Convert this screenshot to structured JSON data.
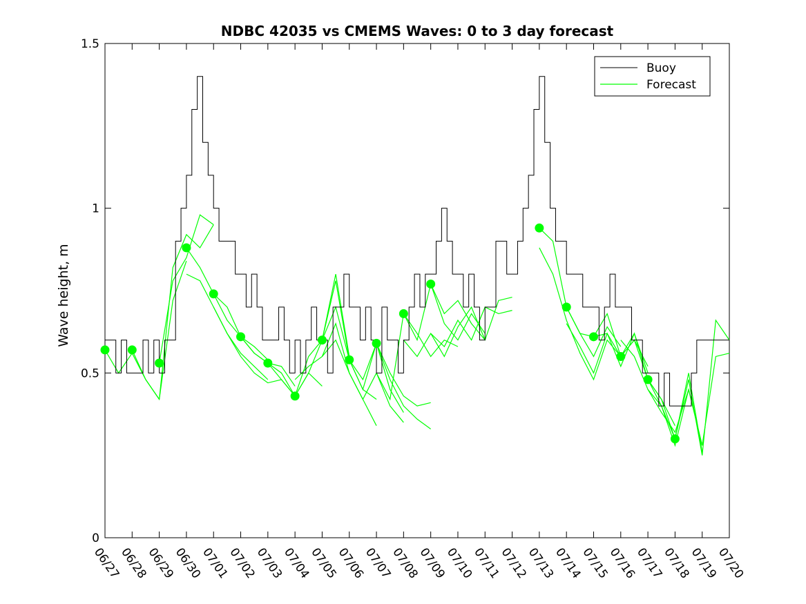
{
  "chart_data": {
    "type": "line",
    "title": "NDBC 42035 vs CMEMS Waves: 0 to 3 day forecast",
    "xlabel": "",
    "ylabel": "Wave height, m",
    "xlim": [
      0,
      23
    ],
    "ylim": [
      0,
      1.5
    ],
    "yticks": [
      0,
      0.5,
      1,
      1.5
    ],
    "ytick_labels": [
      "0",
      "0.5",
      "1",
      "1.5"
    ],
    "xtick_labels": [
      "06/27",
      "06/28",
      "06/29",
      "06/30",
      "07/01",
      "07/02",
      "07/03",
      "07/04",
      "07/05",
      "07/06",
      "07/07",
      "07/08",
      "07/09",
      "07/10",
      "07/11",
      "07/12",
      "07/13",
      "07/14",
      "07/15",
      "07/16",
      "07/17",
      "07/18",
      "07/19",
      "07/20"
    ],
    "grid": false,
    "legend_position": "top-right",
    "legend": [
      "Buoy",
      "Forecast"
    ],
    "colors": {
      "buoy": "#000000",
      "forecast": "#00ff00",
      "axes": "#000000"
    },
    "buoy": {
      "name": "Buoy",
      "x": [
        0,
        0.2,
        0.4,
        0.6,
        0.8,
        1.0,
        1.2,
        1.4,
        1.6,
        1.8,
        2.0,
        2.2,
        2.4,
        2.6,
        2.8,
        3.0,
        3.2,
        3.4,
        3.6,
        3.8,
        4.0,
        4.2,
        4.4,
        4.6,
        4.8,
        5.0,
        5.2,
        5.4,
        5.6,
        5.8,
        6.0,
        6.2,
        6.4,
        6.6,
        6.8,
        7.0,
        7.2,
        7.4,
        7.6,
        7.8,
        8.0,
        8.2,
        8.4,
        8.6,
        8.8,
        9.0,
        9.2,
        9.4,
        9.6,
        9.8,
        10.0,
        10.2,
        10.4,
        10.6,
        10.8,
        11.0,
        11.2,
        11.4,
        11.6,
        11.8,
        12.0,
        12.2,
        12.4,
        12.6,
        12.8,
        13.0,
        13.2,
        13.4,
        13.6,
        13.8,
        14.0,
        14.2,
        14.4,
        14.6,
        14.8,
        15.0,
        15.2,
        15.4,
        15.6,
        15.8,
        16.0,
        16.2,
        16.4,
        16.6,
        16.8,
        17.0,
        17.2,
        17.4,
        17.6,
        17.8,
        18.0,
        18.2,
        18.4,
        18.6,
        18.8,
        19.0,
        19.2,
        19.4,
        19.6,
        19.8,
        20.0,
        20.2,
        20.4,
        20.6,
        20.8,
        21.0,
        21.2,
        21.4,
        21.6,
        21.8,
        22.0,
        22.2,
        22.4,
        22.6,
        22.8,
        23.0
      ],
      "y": [
        0.6,
        0.6,
        0.5,
        0.6,
        0.5,
        0.5,
        0.5,
        0.6,
        0.5,
        0.6,
        0.5,
        0.6,
        0.6,
        0.9,
        1.0,
        1.1,
        1.3,
        1.4,
        1.2,
        1.1,
        1.0,
        0.9,
        0.9,
        0.9,
        0.8,
        0.8,
        0.7,
        0.8,
        0.7,
        0.6,
        0.6,
        0.6,
        0.7,
        0.6,
        0.5,
        0.6,
        0.5,
        0.6,
        0.7,
        0.6,
        0.6,
        0.5,
        0.7,
        0.7,
        0.8,
        0.7,
        0.7,
        0.6,
        0.7,
        0.6,
        0.5,
        0.7,
        0.6,
        0.6,
        0.5,
        0.6,
        0.7,
        0.8,
        0.7,
        0.8,
        0.8,
        0.9,
        1.0,
        0.9,
        0.8,
        0.8,
        0.7,
        0.8,
        0.7,
        0.6,
        0.7,
        0.7,
        0.9,
        0.9,
        0.8,
        0.8,
        0.9,
        1.0,
        1.1,
        1.3,
        1.4,
        1.2,
        1.0,
        0.9,
        0.9,
        0.8,
        0.8,
        0.8,
        0.7,
        0.7,
        0.7,
        0.6,
        0.7,
        0.8,
        0.7,
        0.7,
        0.7,
        0.6,
        0.6,
        0.5,
        0.5,
        0.5,
        0.4,
        0.5,
        0.4,
        0.4,
        0.4,
        0.4,
        0.5,
        0.6,
        0.6,
        0.6,
        0.6,
        0.6,
        0.6,
        0.6
      ]
    },
    "forecast_markers": {
      "x": [
        0,
        1,
        2,
        3,
        4,
        5,
        6,
        7,
        8,
        9,
        10,
        11,
        12,
        16,
        17,
        18,
        19,
        20,
        21
      ],
      "y": [
        0.57,
        0.57,
        0.53,
        0.88,
        0.74,
        0.61,
        0.53,
        0.43,
        0.6,
        0.54,
        0.59,
        0.68,
        0.77,
        0.94,
        0.7,
        0.61,
        0.55,
        0.48,
        0.3
      ]
    },
    "forecast_runs": [
      {
        "x": [
          0,
          0.5,
          1,
          1.5,
          2
        ],
        "y": [
          0.57,
          0.5,
          0.56,
          0.48,
          0.42
        ]
      },
      {
        "x": [
          1,
          1.5,
          2,
          2.5,
          3
        ],
        "y": [
          0.57,
          0.48,
          0.42,
          0.72,
          0.84
        ]
      },
      {
        "x": [
          2,
          2.5,
          3,
          3.5,
          4
        ],
        "y": [
          0.42,
          0.82,
          0.92,
          0.88,
          0.95
        ]
      },
      {
        "x": [
          2,
          2.5,
          3,
          3.5,
          4
        ],
        "y": [
          0.53,
          0.78,
          0.85,
          0.98,
          0.95
        ]
      },
      {
        "x": [
          3,
          3.5,
          4,
          4.5,
          5,
          5.5,
          6
        ],
        "y": [
          0.88,
          0.82,
          0.74,
          0.7,
          0.61,
          0.58,
          0.54
        ]
      },
      {
        "x": [
          3,
          3.5,
          4,
          4.5,
          5,
          5.5,
          6
        ],
        "y": [
          0.8,
          0.78,
          0.7,
          0.62,
          0.56,
          0.52,
          0.48
        ]
      },
      {
        "x": [
          4,
          4.5,
          5,
          5.5,
          6,
          6.5,
          7
        ],
        "y": [
          0.74,
          0.66,
          0.61,
          0.56,
          0.53,
          0.52,
          0.46
        ]
      },
      {
        "x": [
          4,
          4.5,
          5,
          5.5,
          6,
          6.5,
          7
        ],
        "y": [
          0.7,
          0.62,
          0.55,
          0.5,
          0.47,
          0.48,
          0.43
        ]
      },
      {
        "x": [
          5,
          5.5,
          6,
          6.5,
          7,
          7.5,
          8
        ],
        "y": [
          0.61,
          0.56,
          0.53,
          0.48,
          0.43,
          0.5,
          0.46
        ]
      },
      {
        "x": [
          6,
          6.5,
          7,
          7.5,
          8,
          8.5,
          9
        ],
        "y": [
          0.53,
          0.5,
          0.43,
          0.55,
          0.6,
          0.8,
          0.55
        ]
      },
      {
        "x": [
          7,
          7.5,
          8,
          8.5,
          9,
          9.5,
          10
        ],
        "y": [
          0.43,
          0.5,
          0.6,
          0.78,
          0.54,
          0.45,
          0.42
        ]
      },
      {
        "x": [
          7,
          7.5,
          8,
          8.5,
          9,
          9.5,
          10
        ],
        "y": [
          0.48,
          0.52,
          0.55,
          0.65,
          0.5,
          0.42,
          0.34
        ]
      },
      {
        "x": [
          8,
          8.5,
          9,
          9.5,
          10,
          10.5,
          11
        ],
        "y": [
          0.6,
          0.7,
          0.54,
          0.45,
          0.59,
          0.45,
          0.38
        ]
      },
      {
        "x": [
          8,
          8.5,
          9,
          9.5,
          10,
          10.5,
          11
        ],
        "y": [
          0.55,
          0.6,
          0.5,
          0.42,
          0.5,
          0.4,
          0.35
        ]
      },
      {
        "x": [
          9,
          9.5,
          10,
          10.5,
          11,
          11.5,
          12
        ],
        "y": [
          0.54,
          0.48,
          0.59,
          0.48,
          0.4,
          0.36,
          0.33
        ]
      },
      {
        "x": [
          10,
          10.5,
          11,
          11.5,
          12
        ],
        "y": [
          0.59,
          0.5,
          0.43,
          0.4,
          0.41
        ]
      },
      {
        "x": [
          10,
          10.5,
          11,
          11.5,
          12,
          12.5,
          13
        ],
        "y": [
          0.5,
          0.42,
          0.68,
          0.62,
          0.55,
          0.6,
          0.58
        ]
      },
      {
        "x": [
          11,
          11.5,
          12,
          12.5,
          13,
          13.5,
          14
        ],
        "y": [
          0.68,
          0.6,
          0.77,
          0.65,
          0.6,
          0.68,
          0.62
        ]
      },
      {
        "x": [
          11,
          11.5,
          12,
          12.5,
          13,
          13.5,
          14
        ],
        "y": [
          0.6,
          0.55,
          0.62,
          0.55,
          0.64,
          0.7,
          0.6
        ]
      },
      {
        "x": [
          12,
          12.5,
          13,
          13.5,
          14,
          14.5,
          15
        ],
        "y": [
          0.77,
          0.68,
          0.72,
          0.65,
          0.6,
          0.72,
          0.73
        ]
      },
      {
        "x": [
          12,
          12.5,
          13,
          13.5,
          14,
          14.5,
          15
        ],
        "y": [
          0.62,
          0.58,
          0.66,
          0.6,
          0.7,
          0.68,
          0.69
        ]
      },
      {
        "x": [
          16,
          16.5,
          17,
          17.5,
          18,
          18.5,
          19
        ],
        "y": [
          0.94,
          0.9,
          0.7,
          0.62,
          0.55,
          0.64,
          0.58
        ]
      },
      {
        "x": [
          16,
          16.5,
          17,
          17.5,
          18,
          18.5,
          19
        ],
        "y": [
          0.88,
          0.8,
          0.66,
          0.56,
          0.48,
          0.6,
          0.55
        ]
      },
      {
        "x": [
          17,
          17.5,
          18,
          18.5,
          19,
          19.5,
          20
        ],
        "y": [
          0.7,
          0.62,
          0.61,
          0.68,
          0.55,
          0.6,
          0.52
        ]
      },
      {
        "x": [
          17,
          17.5,
          18,
          18.5,
          19,
          19.5,
          20
        ],
        "y": [
          0.65,
          0.58,
          0.5,
          0.62,
          0.52,
          0.62,
          0.5
        ]
      },
      {
        "x": [
          18,
          18.5,
          19,
          19.5,
          20,
          20.5,
          21
        ],
        "y": [
          0.61,
          0.62,
          0.55,
          0.62,
          0.48,
          0.42,
          0.34
        ]
      },
      {
        "x": [
          19,
          19.5,
          20,
          20.5,
          21,
          21.5,
          22
        ],
        "y": [
          0.55,
          0.6,
          0.48,
          0.42,
          0.3,
          0.5,
          0.26
        ]
      },
      {
        "x": [
          19,
          19.5,
          20,
          20.5,
          21,
          21.5,
          22
        ],
        "y": [
          0.6,
          0.55,
          0.45,
          0.4,
          0.28,
          0.45,
          0.28
        ]
      },
      {
        "x": [
          20,
          20.5,
          21,
          21.5,
          22,
          22.5,
          23
        ],
        "y": [
          0.48,
          0.4,
          0.3,
          0.48,
          0.25,
          0.66,
          0.6
        ]
      },
      {
        "x": [
          20,
          20.5,
          21,
          21.5,
          22,
          22.5,
          23
        ],
        "y": [
          0.45,
          0.38,
          0.32,
          0.45,
          0.28,
          0.55,
          0.56
        ]
      }
    ]
  }
}
